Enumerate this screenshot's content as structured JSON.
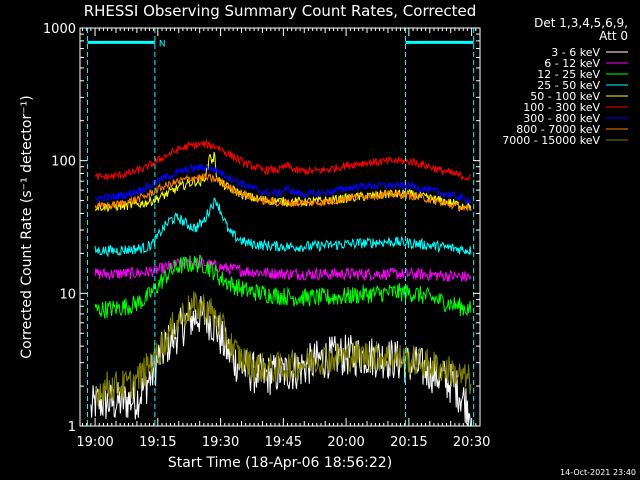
{
  "chart_data": {
    "type": "line",
    "title": "RHESSI Observing Summary Count Rates, Corrected",
    "xlabel": "Start Time (18-Apr-06 18:56:22)",
    "ylabel": "Corrected Count Rate (s⁻¹ detector⁻¹)",
    "y_scale": "log",
    "ylim": [
      1,
      1000
    ],
    "y_ticks": [
      {
        "value": 1,
        "label": "1"
      },
      {
        "value": 10,
        "label": "10"
      },
      {
        "value": 100,
        "label": "100"
      },
      {
        "value": 1000,
        "label": "1000"
      }
    ],
    "x_unit": "minutes after 19:00",
    "xlim": [
      -3.6,
      92
    ],
    "x_ticks": [
      {
        "value": 0,
        "label": "19:00"
      },
      {
        "value": 15,
        "label": "19:15"
      },
      {
        "value": 30,
        "label": "19:30"
      },
      {
        "value": 45,
        "label": "19:45"
      },
      {
        "value": 60,
        "label": "20:00"
      },
      {
        "value": 75,
        "label": "20:15"
      },
      {
        "value": 90,
        "label": "20:30"
      }
    ],
    "legend": {
      "position": "right",
      "header": [
        "Det 1,3,4,5,6,9,",
        "Att 0"
      ]
    },
    "night_markers": {
      "color": "#00ffff",
      "spans": [
        {
          "start": -1.8,
          "end": 14.3,
          "label": "N"
        },
        {
          "start": 74.2,
          "end": 90.5,
          "label": ""
        }
      ],
      "bar_level": 780
    },
    "series": [
      {
        "name": "3 - 6 keV",
        "color": "#ffffff",
        "x": [
          -1,
          0,
          5,
          10,
          12,
          14,
          15,
          17,
          20,
          22,
          25,
          27,
          29,
          31,
          33,
          35,
          38,
          41,
          44,
          47,
          50,
          53,
          56,
          59,
          62,
          65,
          68,
          71,
          74,
          77,
          80,
          83,
          86,
          88,
          90
        ],
        "y": [
          1.3,
          1.5,
          1.5,
          1.6,
          2.0,
          2.6,
          3.2,
          4.0,
          5.2,
          6.2,
          6.8,
          6.5,
          5.5,
          4.0,
          3.2,
          2.8,
          2.5,
          2.4,
          2.5,
          2.6,
          2.8,
          3.1,
          3.3,
          3.4,
          3.4,
          3.4,
          3.3,
          3.2,
          3.0,
          2.8,
          2.6,
          2.3,
          2.0,
          1.6,
          1.3
        ]
      },
      {
        "name": "6 - 12 keV",
        "color": "#ff00ff",
        "x": [
          0,
          5,
          10,
          13,
          15,
          18,
          20,
          22,
          25,
          27,
          29,
          31,
          34,
          38,
          42,
          46,
          50,
          55,
          60,
          65,
          70,
          75,
          80,
          85,
          90
        ],
        "y": [
          14,
          14,
          14.2,
          14.5,
          15,
          16,
          16.8,
          17,
          17,
          16.5,
          16,
          15.5,
          15,
          14.5,
          14.2,
          14,
          14,
          14,
          14,
          14,
          14,
          14,
          13.8,
          13.5,
          13.3
        ]
      },
      {
        "name": "12 - 25 keV",
        "color": "#00ff00",
        "x": [
          0,
          3,
          6,
          9,
          12,
          14,
          16,
          18,
          20,
          22,
          24,
          26,
          28,
          30,
          33,
          36,
          40,
          44,
          48,
          52,
          56,
          60,
          64,
          68,
          72,
          76,
          80,
          84,
          88,
          90
        ],
        "y": [
          7.5,
          7.6,
          7.8,
          8.2,
          9.0,
          10.5,
          12.5,
          14.5,
          16,
          16.5,
          16.8,
          16.5,
          15,
          13,
          11.5,
          10.5,
          10,
          9.6,
          9.3,
          9.3,
          9.3,
          9.5,
          9.8,
          10,
          10.2,
          10,
          9.3,
          8.5,
          7.8,
          7.5
        ]
      },
      {
        "name": "25 - 50 keV",
        "color": "#00ffff",
        "x": [
          0,
          5,
          9,
          12,
          14,
          16,
          18,
          20,
          22,
          24,
          26,
          28,
          29,
          30,
          31,
          32,
          34,
          36,
          40,
          45,
          50,
          55,
          60,
          65,
          70,
          75,
          80,
          85,
          90
        ],
        "y": [
          21,
          21,
          21.5,
          22,
          24,
          30,
          36,
          37,
          33,
          31,
          35,
          47,
          50,
          42,
          35,
          29,
          26,
          24,
          23,
          22.5,
          22.5,
          23,
          23.5,
          24,
          24.5,
          24,
          23,
          22,
          21
        ]
      },
      {
        "name": "50 - 100 keV",
        "color": "#ffff00",
        "x": [
          0,
          4,
          8,
          12,
          15,
          18,
          20,
          22,
          24,
          25,
          26,
          27,
          27.5,
          28,
          28.5,
          29,
          29.5,
          30,
          32,
          35,
          38,
          42,
          46,
          50,
          55,
          60,
          65,
          70,
          75,
          80,
          85,
          90
        ],
        "y": [
          45,
          45,
          46,
          48,
          52,
          58,
          63,
          67,
          70,
          68,
          72,
          90,
          118,
          95,
          112,
          80,
          72,
          68,
          62,
          56,
          52,
          50,
          49,
          49,
          50,
          52,
          54,
          56,
          56,
          52,
          48,
          45
        ]
      },
      {
        "name": "100 - 300 keV",
        "color": "#ff0000",
        "x": [
          0,
          4,
          8,
          12,
          16,
          20,
          23,
          26,
          29,
          32,
          36,
          40,
          44,
          46,
          48,
          52,
          56,
          60,
          64,
          68,
          72,
          76,
          80,
          84,
          88,
          90
        ],
        "y": [
          75,
          76,
          80,
          88,
          105,
          122,
          130,
          133,
          128,
          112,
          95,
          85,
          85,
          92,
          84,
          83,
          86,
          92,
          96,
          98,
          100,
          98,
          90,
          82,
          76,
          73
        ]
      },
      {
        "name": "300 - 800 keV",
        "color": "#0000ff",
        "x": [
          0,
          4,
          8,
          12,
          16,
          20,
          23,
          26,
          29,
          32,
          36,
          40,
          44,
          46,
          48,
          52,
          56,
          60,
          64,
          68,
          72,
          76,
          80,
          84,
          88,
          90
        ],
        "y": [
          52,
          53,
          56,
          62,
          73,
          82,
          87,
          89,
          85,
          75,
          65,
          58,
          57,
          62,
          57,
          56,
          58,
          62,
          64,
          65,
          65,
          64,
          60,
          56,
          52,
          50
        ]
      },
      {
        "name": "800 - 7000 keV",
        "color": "#ff8000",
        "x": [
          0,
          4,
          8,
          12,
          16,
          20,
          23,
          26,
          29,
          32,
          36,
          40,
          44,
          48,
          52,
          56,
          60,
          64,
          68,
          72,
          76,
          80,
          84,
          88,
          90
        ],
        "y": [
          45,
          46,
          49,
          54,
          63,
          70,
          74,
          75,
          72,
          63,
          55,
          50,
          48,
          48,
          48,
          49,
          52,
          54,
          55,
          56,
          54,
          51,
          47,
          44,
          42
        ]
      },
      {
        "name": "7000 - 15000 keV",
        "color": "#808000",
        "x": [
          0,
          3,
          6,
          9,
          11,
          13,
          15,
          17,
          19,
          21,
          23,
          25,
          27,
          29,
          31,
          33,
          35,
          38,
          42,
          46,
          50,
          54,
          58,
          62,
          66,
          70,
          74,
          78,
          82,
          86,
          88,
          90
        ],
        "y": [
          1.8,
          2.0,
          2.0,
          2.1,
          2.4,
          2.9,
          3.6,
          4.5,
          5.8,
          7.0,
          7.8,
          8.0,
          7.6,
          6.5,
          5.0,
          3.8,
          3.2,
          2.8,
          2.7,
          2.8,
          3.0,
          3.2,
          3.3,
          3.4,
          3.4,
          3.3,
          3.2,
          3.0,
          2.8,
          2.5,
          2.3,
          2.2
        ]
      }
    ]
  },
  "footer": {
    "timestamp": "14-Oct-2021 23:40"
  }
}
